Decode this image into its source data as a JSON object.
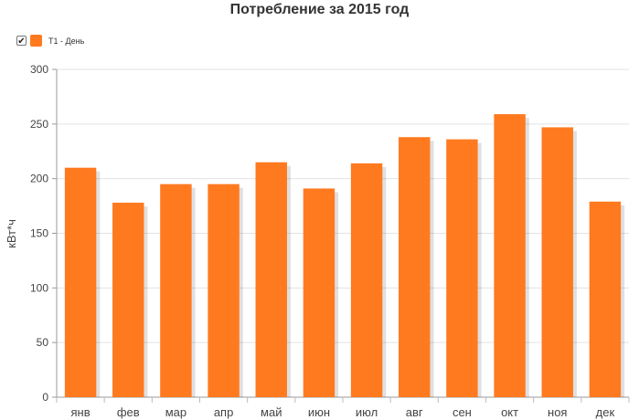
{
  "chart_data": {
    "type": "bar",
    "title": "Потребление за 2015 год",
    "xlabel": "",
    "ylabel": "кВт*ч",
    "ylim": [
      0,
      300
    ],
    "yticks": [
      0,
      50,
      100,
      150,
      200,
      250,
      300
    ],
    "grid": "y",
    "legend_position": "top-left",
    "categories": [
      "янв",
      "фев",
      "мар",
      "апр",
      "май",
      "июн",
      "июл",
      "авг",
      "сен",
      "окт",
      "ноя",
      "дек"
    ],
    "series": [
      {
        "name": "Т1 - День",
        "color": "#ff7a1f",
        "values": [
          210,
          178,
          195,
          195,
          215,
          191,
          214,
          238,
          236,
          259,
          247,
          179
        ]
      }
    ]
  },
  "legend": {
    "checkbox_checked": true,
    "checkbox_icon": "checkmark-icon"
  }
}
